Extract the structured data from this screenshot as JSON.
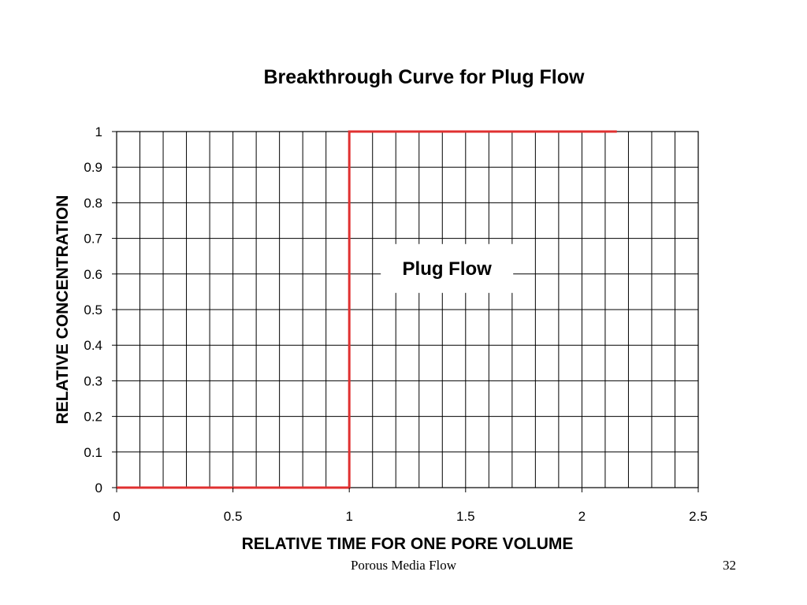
{
  "chart_data": {
    "type": "line",
    "title": "Breakthrough Curve for Plug Flow",
    "xlabel": "RELATIVE TIME FOR ONE PORE VOLUME",
    "ylabel": "RELATIVE CONCENTRATION",
    "xlim": [
      0,
      2.5
    ],
    "ylim": [
      0,
      1
    ],
    "x_ticks": [
      "0",
      "0.5",
      "1",
      "1.5",
      "2",
      "2.5"
    ],
    "y_ticks": [
      "0",
      "0.1",
      "0.2",
      "0.3",
      "0.4",
      "0.5",
      "0.6",
      "0.7",
      "0.8",
      "0.9",
      "1"
    ],
    "grid": true,
    "series": [
      {
        "color": "#e03030",
        "x": [
          0,
          1,
          1,
          2.15
        ],
        "y": [
          0,
          0,
          1,
          1
        ]
      }
    ],
    "annotations": [
      {
        "text": "Plug Flow",
        "x": 1.42,
        "y": 0.6
      }
    ]
  },
  "footer": {
    "title": "Porous Media Flow",
    "page_number": "32"
  }
}
